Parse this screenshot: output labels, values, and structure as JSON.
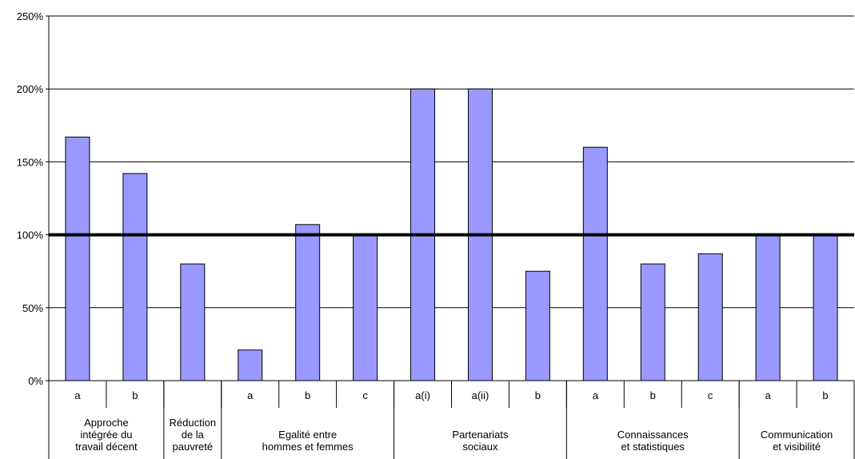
{
  "chart_data": {
    "type": "bar",
    "title": "",
    "xlabel": "",
    "ylabel": "",
    "ylim": [
      0,
      250
    ],
    "y_ticks": [
      "0%",
      "50%",
      "100%",
      "150%",
      "200%",
      "250%"
    ],
    "y_tick_values": [
      0,
      50,
      100,
      150,
      200,
      250
    ],
    "reference_line": 100,
    "grid": true,
    "bar_color": "#9999ff",
    "categories": [
      "a",
      "b",
      "",
      "a",
      "b",
      "c",
      "a(i)",
      "a(ii)",
      "b",
      "a",
      "b",
      "c",
      "a",
      "b"
    ],
    "values": [
      167,
      142,
      80,
      21,
      107,
      100,
      200,
      200,
      75,
      160,
      80,
      87,
      100,
      100
    ],
    "groups": [
      {
        "label_lines": [
          "Approche",
          "intégrée du",
          "travail décent"
        ],
        "count": 2
      },
      {
        "label_lines": [
          "Réduction",
          "de la",
          "pauvreté"
        ],
        "count": 1
      },
      {
        "label_lines": [
          "Egalité entre",
          "hommes et femmes"
        ],
        "count": 3
      },
      {
        "label_lines": [
          "Partenariats",
          "sociaux"
        ],
        "count": 3
      },
      {
        "label_lines": [
          "Connaissances",
          "et statistiques"
        ],
        "count": 3
      },
      {
        "label_lines": [
          "Communication",
          "et visibilité"
        ],
        "count": 2
      }
    ]
  }
}
